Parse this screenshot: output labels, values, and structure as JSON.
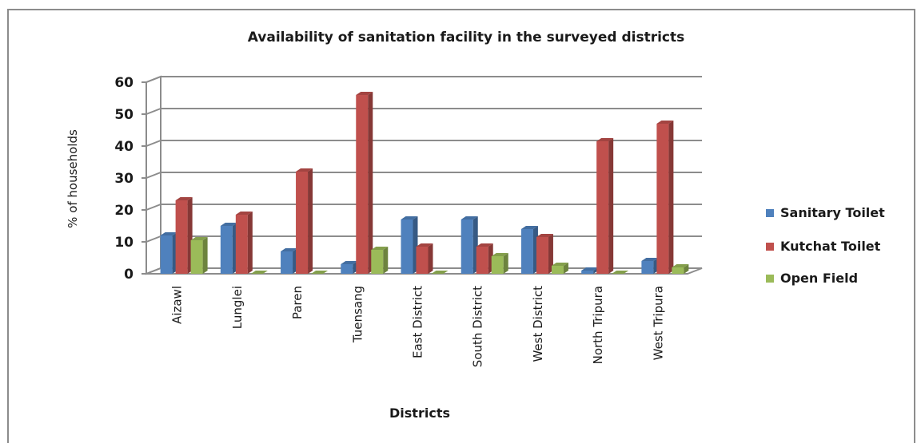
{
  "chart_data": {
    "type": "bar",
    "title": "Availability of sanitation facility in the surveyed districts",
    "xlabel": "Districts",
    "ylabel": "% of households",
    "ylim": [
      0,
      60
    ],
    "yticks": [
      0,
      10,
      20,
      30,
      40,
      50,
      60
    ],
    "grid": true,
    "legend_position": "right",
    "categories": [
      "Aizawl",
      "Lunglei",
      "Paren",
      "Tuensang",
      "East District",
      "South District",
      "West District",
      "North Tripura",
      "West Tripura"
    ],
    "series": [
      {
        "name": "Sanitary Toilet",
        "color": "#4f81bd",
        "values": [
          12,
          15,
          7,
          3,
          17,
          17,
          14,
          1,
          4
        ]
      },
      {
        "name": "Kutchat Toilet",
        "color": "#c0504d",
        "values": [
          23,
          18.5,
          32,
          56,
          8.5,
          8.5,
          11.5,
          41.5,
          47
        ]
      },
      {
        "name": "Open Field",
        "color": "#9bbb59",
        "values": [
          10.5,
          0,
          0,
          7.5,
          0,
          5.5,
          2.5,
          0,
          2
        ]
      }
    ]
  }
}
